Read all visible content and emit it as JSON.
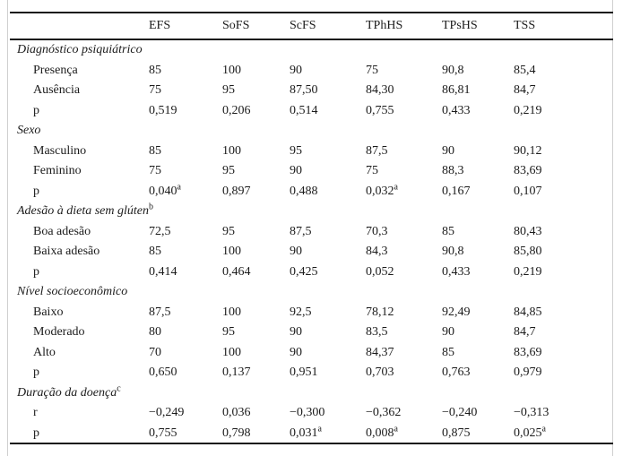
{
  "page": {
    "background": "#ffffff",
    "text_color": "#1b1b1b",
    "rule_color": "#161616",
    "edge_color": "#cfcfcf"
  },
  "table": {
    "columns": [
      "EFS",
      "SoFS",
      "ScFS",
      "TPhHS",
      "TPsHS",
      "TSS"
    ],
    "sections": [
      {
        "title": "Diagnóstico psiquiátrico",
        "rows": [
          {
            "label": "Presença",
            "values": [
              "85",
              "100",
              "90",
              "75",
              "90,8",
              "85,4"
            ]
          },
          {
            "label": "Ausência",
            "values": [
              "75",
              "95",
              "87,50",
              "84,30",
              "86,81",
              "84,7"
            ]
          },
          {
            "label": "p",
            "values": [
              "0,519",
              "0,206",
              "0,514",
              "0,755",
              "0,433",
              "0,219"
            ]
          }
        ]
      },
      {
        "title": "Sexo",
        "rows": [
          {
            "label": "Masculino",
            "values": [
              "85",
              "100",
              "95",
              "87,5",
              "90",
              "90,12"
            ]
          },
          {
            "label": "Feminino",
            "values": [
              "75",
              "95",
              "90",
              "75",
              "88,3",
              "83,69"
            ]
          },
          {
            "label": "p",
            "values": [
              "0,040^a",
              "0,897",
              "0,488",
              "0,032^a",
              "0,167",
              "0,107"
            ]
          }
        ]
      },
      {
        "title": "Adesão à dieta sem glúten^b",
        "rows": [
          {
            "label": "Boa adesão",
            "values": [
              "72,5",
              "95",
              "87,5",
              "70,3",
              "85",
              "80,43"
            ]
          },
          {
            "label": "Baixa adesão",
            "values": [
              "85",
              "100",
              "90",
              "84,3",
              "90,8",
              "85,80"
            ]
          },
          {
            "label": "p",
            "values": [
              "0,414",
              "0,464",
              "0,425",
              "0,052",
              "0,433",
              "0,219"
            ]
          }
        ]
      },
      {
        "title": "Nível socioeconômico",
        "rows": [
          {
            "label": "Baixo",
            "values": [
              "87,5",
              "100",
              "92,5",
              "78,12",
              "92,49",
              "84,85"
            ]
          },
          {
            "label": "Moderado",
            "values": [
              "80",
              "95",
              "90",
              "83,5",
              "90",
              "84,7"
            ]
          },
          {
            "label": "Alto",
            "values": [
              "70",
              "100",
              "90",
              "84,37",
              "85",
              "83,69"
            ]
          },
          {
            "label": "p",
            "values": [
              "0,650",
              "0,137",
              "0,951",
              "0,703",
              "0,763",
              "0,979"
            ]
          }
        ]
      },
      {
        "title": "Duração da doença^c",
        "rows": [
          {
            "label": "r",
            "values": [
              "−0,249",
              "0,036",
              "−0,300",
              "−0,362",
              "−0,240",
              "−0,313"
            ]
          },
          {
            "label": "p",
            "values": [
              "0,755",
              "0,798",
              "0,031^a",
              "0,008^a",
              "0,875",
              "0,025^a"
            ]
          }
        ]
      }
    ]
  }
}
